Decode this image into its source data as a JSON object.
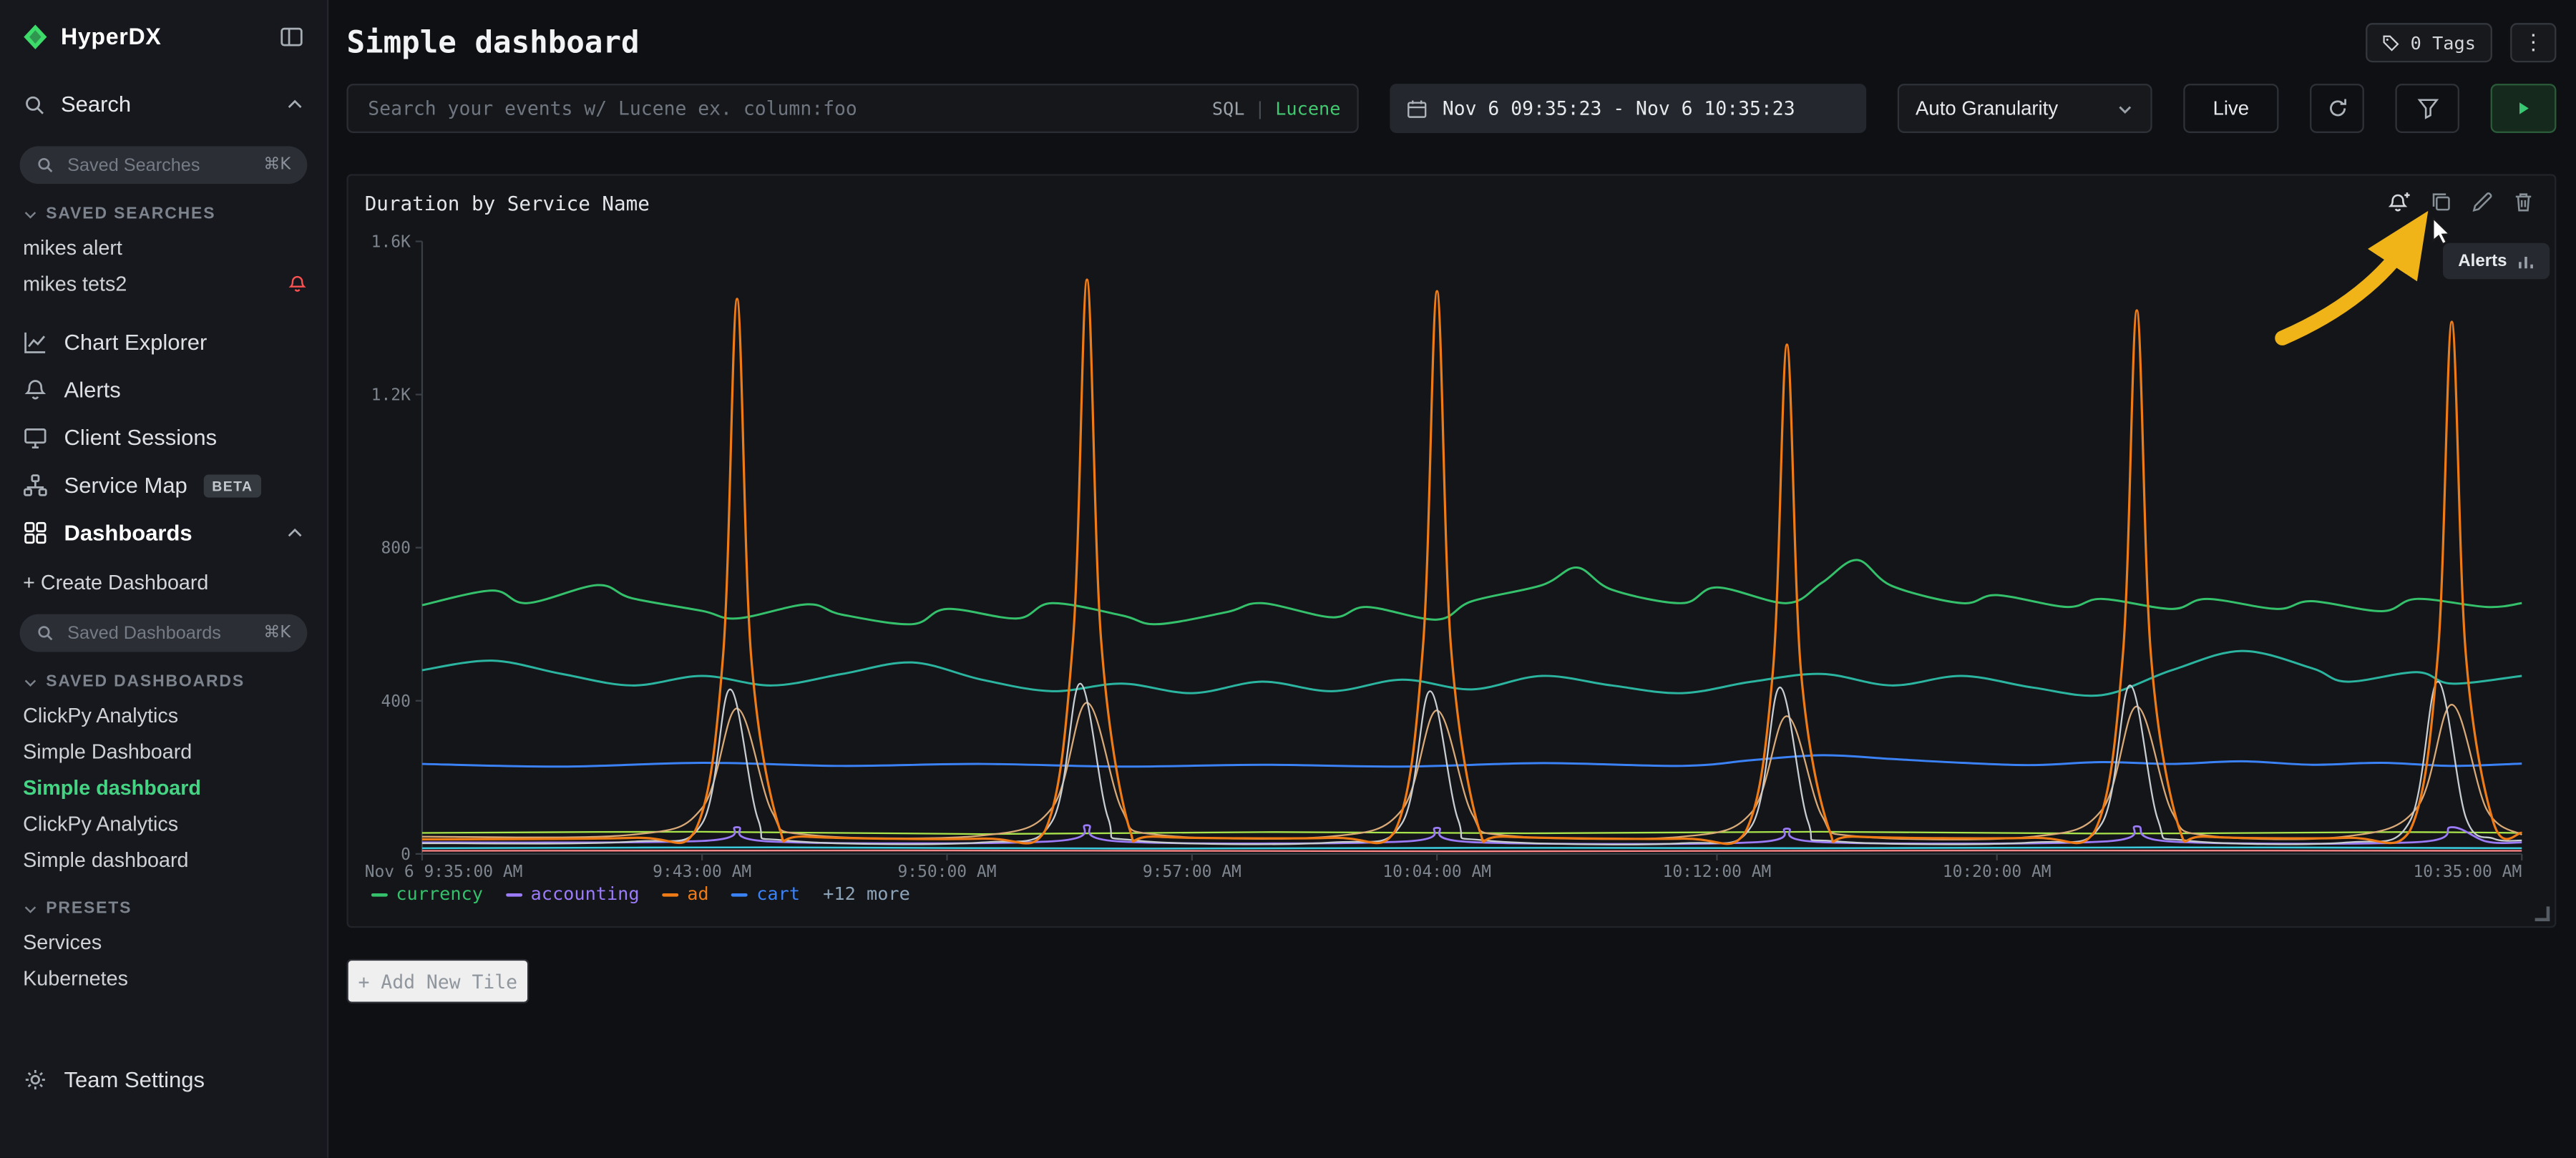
{
  "app": {
    "name": "HyperDX",
    "accent_green": "#3ddc6a",
    "alert_red": "#fa5252"
  },
  "sidebar": {
    "search_label": "Search",
    "saved_searches_placeholder": "Saved Searches",
    "shortcut": "⌘K",
    "saved_searches_header": "SAVED SEARCHES",
    "saved_searches": [
      "mikes alert",
      "mikes tets2"
    ],
    "nav": [
      {
        "label": "Chart Explorer"
      },
      {
        "label": "Alerts"
      },
      {
        "label": "Client Sessions"
      },
      {
        "label": "Service Map",
        "badge": "BETA"
      },
      {
        "label": "Dashboards"
      }
    ],
    "create_dashboard": "+ Create Dashboard",
    "saved_dashboards_placeholder": "Saved Dashboards",
    "saved_dashboards_header": "SAVED DASHBOARDS",
    "saved_dashboards": [
      "ClickPy Analytics",
      "Simple Dashboard",
      "Simple dashboard",
      "ClickPy Analytics",
      "Simple dashboard"
    ],
    "active_dashboard_index": 2,
    "presets_header": "PRESETS",
    "presets": [
      "Services",
      "Kubernetes"
    ],
    "team_settings": "Team Settings"
  },
  "header": {
    "title": "Simple dashboard",
    "tags_button": "0 Tags"
  },
  "toolbar": {
    "search_placeholder": "Search your events w/ Lucene ex. column:foo",
    "sql_label": "SQL",
    "divider": "|",
    "lucene_label": "Lucene",
    "time_range": "Nov 6 09:35:23 - Nov 6 10:35:23",
    "granularity": "Auto Granularity",
    "live_label": "Live"
  },
  "panel": {
    "title": "Duration by Service Name",
    "tooltip_label": "Alerts",
    "legend_more": "+12 more",
    "add_tile": "+ Add New Tile",
    "arrow_color": "#f0b418"
  },
  "icons": {
    "logo-icon": "green-gem",
    "collapse-sidebar-icon": "split-rect",
    "search-icon": "magnifier",
    "chart-explorer-icon": "line-chart",
    "alerts-icon": "bell",
    "client-sessions-icon": "monitor",
    "service-map-icon": "sitemap",
    "dashboards-icon": "grid",
    "team-settings-icon": "gear",
    "tag-icon": "tag",
    "kebab-icon": "⋮",
    "calendar-icon": "calendar",
    "chevron-down-icon": "▾",
    "refresh-icon": "circular-arrow",
    "filter-icon": "funnel",
    "run-icon": "play-triangle",
    "alert-bell-plus-icon": "bell+",
    "duplicate-icon": "copy",
    "edit-icon": "pencil",
    "delete-icon": "trash"
  },
  "chart_data": {
    "type": "line",
    "title": "Duration by Service Name",
    "x_range_minutes": [
      0,
      60
    ],
    "ylim": [
      0,
      1600
    ],
    "grid": false,
    "legend_position": "bottom-left",
    "x_ticks": [
      {
        "label": "Nov 6 9:35:00 AM",
        "t": 0
      },
      {
        "label": "9:43:00 AM",
        "t": 8
      },
      {
        "label": "9:50:00 AM",
        "t": 15
      },
      {
        "label": "9:57:00 AM",
        "t": 22
      },
      {
        "label": "10:04:00 AM",
        "t": 29
      },
      {
        "label": "10:12:00 AM",
        "t": 37
      },
      {
        "label": "10:20:00 AM",
        "t": 45
      },
      {
        "label": "10:35:00 AM",
        "t": 60
      }
    ],
    "y_ticks": [
      {
        "label": "0",
        "v": 0
      },
      {
        "label": "400",
        "v": 400
      },
      {
        "label": "800",
        "v": 800
      },
      {
        "label": "1.2K",
        "v": 1200
      },
      {
        "label": "1.6K",
        "v": 1600
      }
    ],
    "legend": [
      {
        "label": "currency",
        "color": "#35c16b"
      },
      {
        "label": "accounting",
        "color": "#9b7bf7"
      },
      {
        "label": "ad",
        "color": "#ef7b17"
      },
      {
        "label": "cart",
        "color": "#3b82f6"
      }
    ],
    "series": [
      {
        "name": null,
        "color": "#3bc9db",
        "width": 1.1,
        "points": [
          [
            0,
            15
          ],
          [
            10,
            17
          ],
          [
            20,
            14
          ],
          [
            30,
            16
          ],
          [
            40,
            15
          ],
          [
            50,
            17
          ],
          [
            60,
            15
          ]
        ]
      },
      {
        "name": null,
        "color": "#a9e34b",
        "width": 1.0,
        "points": [
          [
            0,
            55
          ],
          [
            8,
            58
          ],
          [
            16,
            52
          ],
          [
            24,
            57
          ],
          [
            32,
            54
          ],
          [
            40,
            58
          ],
          [
            48,
            53
          ],
          [
            56,
            57
          ],
          [
            60,
            55
          ]
        ]
      },
      {
        "name": null,
        "color": "#ff8787",
        "width": 1.0,
        "points": [
          [
            0,
            8
          ],
          [
            15,
            9
          ],
          [
            30,
            7
          ],
          [
            45,
            9
          ],
          [
            60,
            8
          ]
        ]
      },
      {
        "name": "accounting",
        "color": "#9b7bf7",
        "width": 1.2,
        "points": [
          [
            0,
            30
          ],
          [
            8,
            34
          ],
          [
            9,
            70
          ],
          [
            10,
            32
          ],
          [
            18,
            33
          ],
          [
            19,
            75
          ],
          [
            20,
            32
          ],
          [
            28,
            32
          ],
          [
            29,
            68
          ],
          [
            30,
            31
          ],
          [
            38,
            30
          ],
          [
            39,
            66
          ],
          [
            40,
            31
          ],
          [
            48,
            32
          ],
          [
            49,
            72
          ],
          [
            50,
            32
          ],
          [
            57,
            31
          ],
          [
            58,
            70
          ],
          [
            59,
            32
          ],
          [
            60,
            30
          ]
        ]
      },
      {
        "name": "cart",
        "color": "#3b82f6",
        "width": 1.3,
        "points": [
          [
            0,
            235
          ],
          [
            4,
            228
          ],
          [
            8,
            238
          ],
          [
            12,
            230
          ],
          [
            16,
            235
          ],
          [
            20,
            228
          ],
          [
            24,
            233
          ],
          [
            28,
            228
          ],
          [
            32,
            237
          ],
          [
            36,
            230
          ],
          [
            38,
            245
          ],
          [
            40,
            258
          ],
          [
            42,
            248
          ],
          [
            44,
            238
          ],
          [
            46,
            232
          ],
          [
            48,
            240
          ],
          [
            50,
            235
          ],
          [
            52,
            242
          ],
          [
            54,
            233
          ],
          [
            56,
            238
          ],
          [
            58,
            230
          ],
          [
            60,
            236
          ]
        ]
      },
      {
        "name": null,
        "color": "#2bb5a0",
        "width": 1.3,
        "points": [
          [
            0,
            480
          ],
          [
            2,
            505
          ],
          [
            4,
            470
          ],
          [
            6,
            440
          ],
          [
            8,
            465
          ],
          [
            10,
            440
          ],
          [
            12,
            470
          ],
          [
            14,
            500
          ],
          [
            16,
            455
          ],
          [
            18,
            425
          ],
          [
            20,
            445
          ],
          [
            22,
            420
          ],
          [
            24,
            450
          ],
          [
            26,
            425
          ],
          [
            28,
            455
          ],
          [
            30,
            430
          ],
          [
            32,
            465
          ],
          [
            34,
            440
          ],
          [
            36,
            420
          ],
          [
            38,
            450
          ],
          [
            40,
            470
          ],
          [
            42,
            440
          ],
          [
            44,
            465
          ],
          [
            46,
            435
          ],
          [
            48,
            415
          ],
          [
            50,
            480
          ],
          [
            52,
            530
          ],
          [
            54,
            485
          ],
          [
            55,
            450
          ],
          [
            57,
            475
          ],
          [
            58,
            445
          ],
          [
            60,
            465
          ]
        ]
      },
      {
        "name": "currency",
        "color": "#35c16b",
        "width": 1.3,
        "points": [
          [
            0,
            650
          ],
          [
            2,
            688
          ],
          [
            3,
            655
          ],
          [
            5,
            702
          ],
          [
            6,
            668
          ],
          [
            8,
            635
          ],
          [
            9,
            615
          ],
          [
            11,
            652
          ],
          [
            12,
            625
          ],
          [
            14,
            600
          ],
          [
            15,
            640
          ],
          [
            17,
            615
          ],
          [
            18,
            655
          ],
          [
            20,
            623
          ],
          [
            21,
            600
          ],
          [
            23,
            632
          ],
          [
            24,
            655
          ],
          [
            26,
            618
          ],
          [
            27,
            645
          ],
          [
            29,
            612
          ],
          [
            30,
            660
          ],
          [
            32,
            702
          ],
          [
            33,
            748
          ],
          [
            34,
            690
          ],
          [
            36,
            655
          ],
          [
            37,
            696
          ],
          [
            39,
            655
          ],
          [
            40,
            708
          ],
          [
            41,
            768
          ],
          [
            42,
            700
          ],
          [
            44,
            655
          ],
          [
            45,
            676
          ],
          [
            47,
            645
          ],
          [
            48,
            666
          ],
          [
            50,
            640
          ],
          [
            51,
            666
          ],
          [
            53,
            640
          ],
          [
            54,
            660
          ],
          [
            56,
            634
          ],
          [
            57,
            666
          ],
          [
            59,
            645
          ],
          [
            60,
            655
          ]
        ]
      },
      {
        "name": null,
        "color": "#d9a977",
        "width": 1.0,
        "points": [
          [
            0,
            45
          ],
          [
            6,
            50
          ],
          [
            8,
            120
          ],
          [
            9,
            380
          ],
          [
            10,
            110
          ],
          [
            11,
            50
          ],
          [
            16,
            48
          ],
          [
            18,
            120
          ],
          [
            19,
            395
          ],
          [
            20,
            115
          ],
          [
            21,
            50
          ],
          [
            26,
            46
          ],
          [
            28,
            115
          ],
          [
            29,
            375
          ],
          [
            30,
            105
          ],
          [
            31,
            48
          ],
          [
            36,
            45
          ],
          [
            38,
            110
          ],
          [
            39,
            360
          ],
          [
            40,
            100
          ],
          [
            41,
            46
          ],
          [
            46,
            45
          ],
          [
            48,
            115
          ],
          [
            49,
            385
          ],
          [
            50,
            110
          ],
          [
            51,
            48
          ],
          [
            55,
            46
          ],
          [
            57,
            120
          ],
          [
            58,
            390
          ],
          [
            59,
            115
          ],
          [
            60,
            50
          ]
        ]
      },
      {
        "name": null,
        "color": "#c8cdd2",
        "width": 1.0,
        "points": [
          [
            0,
            28
          ],
          [
            6,
            32
          ],
          [
            8,
            80
          ],
          [
            8.8,
            430
          ],
          [
            9.6,
            90
          ],
          [
            10.4,
            35
          ],
          [
            16,
            30
          ],
          [
            18,
            85
          ],
          [
            18.8,
            445
          ],
          [
            19.6,
            95
          ],
          [
            20.4,
            35
          ],
          [
            26,
            30
          ],
          [
            28,
            80
          ],
          [
            28.8,
            425
          ],
          [
            29.6,
            90
          ],
          [
            30.4,
            35
          ],
          [
            36,
            28
          ],
          [
            38,
            75
          ],
          [
            38.8,
            435
          ],
          [
            39.6,
            85
          ],
          [
            40.4,
            33
          ],
          [
            46,
            30
          ],
          [
            48,
            80
          ],
          [
            48.8,
            440
          ],
          [
            49.6,
            90
          ],
          [
            50.4,
            35
          ],
          [
            55,
            30
          ],
          [
            56.8,
            85
          ],
          [
            57.6,
            450
          ],
          [
            58.4,
            95
          ],
          [
            59.2,
            40
          ],
          [
            60,
            35
          ]
        ]
      },
      {
        "name": "ad",
        "color": "#ef7b17",
        "width": 1.4,
        "points": [
          [
            0,
            38
          ],
          [
            6,
            42
          ],
          [
            7.8,
            60
          ],
          [
            8.6,
            520
          ],
          [
            9,
            1450
          ],
          [
            9.4,
            520
          ],
          [
            10.2,
            70
          ],
          [
            11,
            45
          ],
          [
            16,
            40
          ],
          [
            17.8,
            60
          ],
          [
            18.6,
            560
          ],
          [
            19,
            1500
          ],
          [
            19.4,
            560
          ],
          [
            20.2,
            70
          ],
          [
            21,
            45
          ],
          [
            26,
            42
          ],
          [
            27.8,
            60
          ],
          [
            28.6,
            540
          ],
          [
            29,
            1470
          ],
          [
            29.4,
            540
          ],
          [
            30.2,
            65
          ],
          [
            31,
            45
          ],
          [
            36,
            40
          ],
          [
            37.8,
            55
          ],
          [
            38.6,
            480
          ],
          [
            39,
            1330
          ],
          [
            39.4,
            480
          ],
          [
            40.2,
            65
          ],
          [
            41,
            45
          ],
          [
            46,
            42
          ],
          [
            47.8,
            60
          ],
          [
            48.6,
            520
          ],
          [
            49,
            1420
          ],
          [
            49.4,
            520
          ],
          [
            50.2,
            70
          ],
          [
            51,
            45
          ],
          [
            55,
            42
          ],
          [
            56.8,
            60
          ],
          [
            57.6,
            520
          ],
          [
            58,
            1390
          ],
          [
            58.4,
            520
          ],
          [
            59.2,
            80
          ],
          [
            60,
            55
          ]
        ]
      }
    ]
  }
}
